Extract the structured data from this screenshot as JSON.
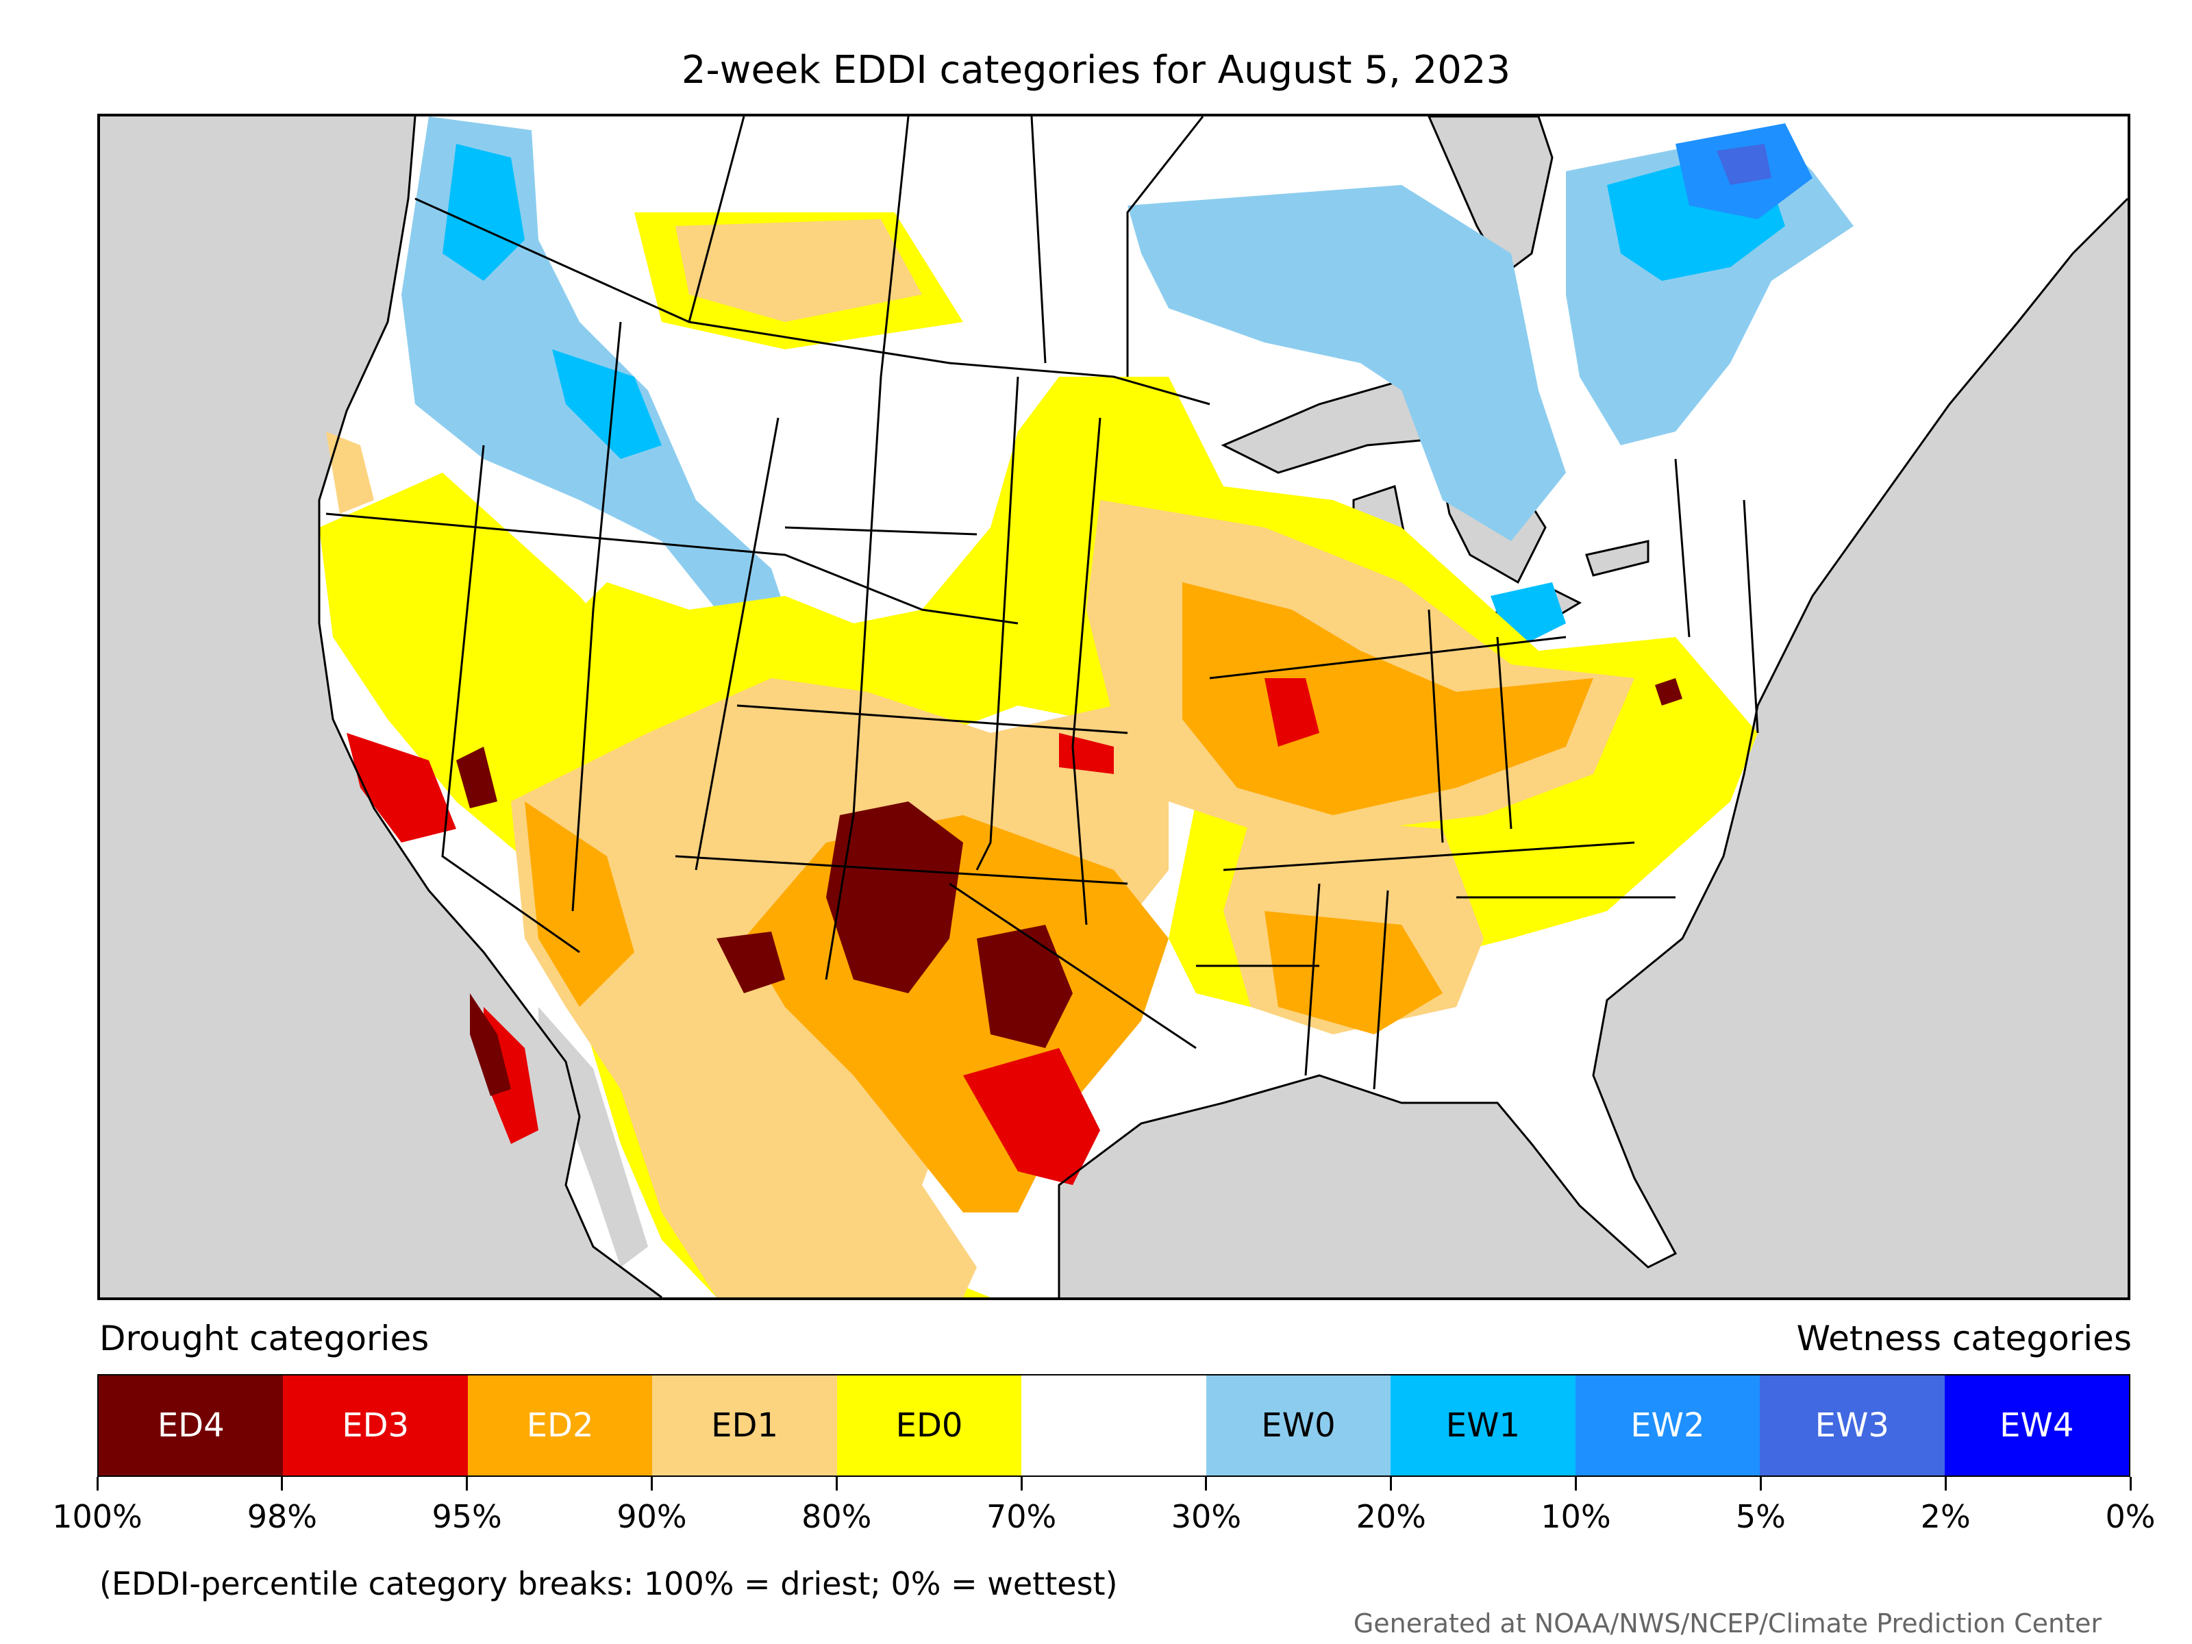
{
  "title": "2-week EDDI categories for August 5, 2023",
  "legend": {
    "left_label": "Drought categories",
    "right_label": "Wetness categories",
    "categories": [
      {
        "label": "ED4",
        "color": "#730000",
        "text_color": "#ffffff"
      },
      {
        "label": "ED3",
        "color": "#e60000",
        "text_color": "#ffffff"
      },
      {
        "label": "ED2",
        "color": "#ffaa00",
        "text_color": "#ffffff"
      },
      {
        "label": "ED1",
        "color": "#fcd37f",
        "text_color": "#000000"
      },
      {
        "label": "ED0",
        "color": "#ffff00",
        "text_color": "#000000"
      },
      {
        "label": "",
        "color": "#ffffff",
        "text_color": "#000000"
      },
      {
        "label": "EW0",
        "color": "#8ccdef",
        "text_color": "#000000"
      },
      {
        "label": "EW1",
        "color": "#00bfff",
        "text_color": "#000000"
      },
      {
        "label": "EW2",
        "color": "#1e90ff",
        "text_color": "#ffffff"
      },
      {
        "label": "EW3",
        "color": "#4169e1",
        "text_color": "#ffffff"
      },
      {
        "label": "EW4",
        "color": "#0000ff",
        "text_color": "#ffffff"
      }
    ],
    "breaks": [
      "100%",
      "98%",
      "95%",
      "90%",
      "80%",
      "70%",
      "30%",
      "20%",
      "10%",
      "5%",
      "2%",
      "0%"
    ]
  },
  "note": "(EDDI-percentile category breaks: 100% = driest; 0% = wettest)",
  "credit": "Generated at NOAA/NWS/NCEP/Climate Prediction Center",
  "map": {
    "water_color": "#d3d3d3",
    "land_color": "#ffffff",
    "boundary_color": "#000000"
  }
}
